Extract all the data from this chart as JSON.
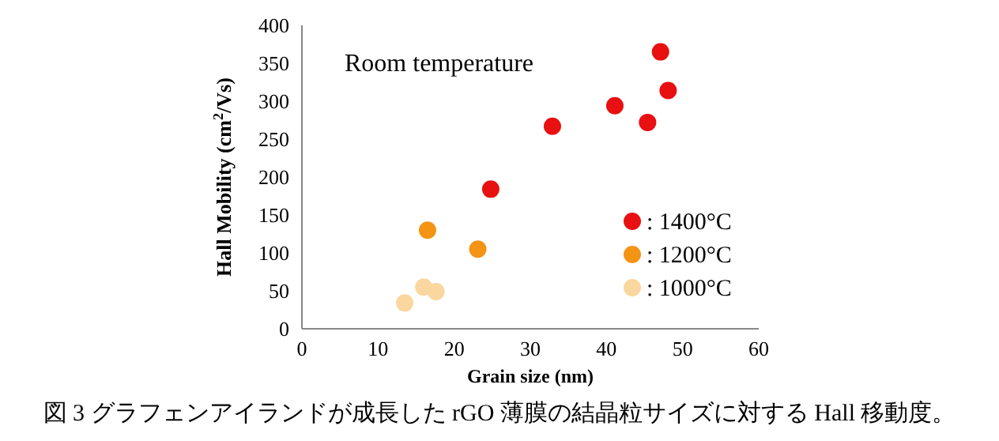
{
  "chart_data": {
    "type": "scatter",
    "xlabel": "Grain size (nm)",
    "ylabel": "Hall Mobility (cm$^{2}$/Vs)",
    "xlim": [
      0,
      60
    ],
    "xticks": [
      0,
      10,
      20,
      30,
      40,
      50,
      60
    ],
    "ylim": [
      0,
      400
    ],
    "yticks": [
      0,
      50,
      100,
      150,
      200,
      250,
      300,
      350,
      400
    ],
    "grid": false,
    "legend": "bottom right",
    "marker": "circle",
    "annotations": [
      "Room temperature",
      "図 3 グラフェンアイランドが成長した rGO 薄膜の結晶粒サイズに対する Hall 移動度。"
    ],
    "series": [
      {
        "name": ": 1400°C",
        "color": "#e81010",
        "x": [
          24.8,
          32.9,
          41.1,
          45.4,
          47.1,
          48.1
        ],
        "values": [
          184,
          267,
          294,
          272,
          365,
          314
        ]
      },
      {
        "name": ": 1200°C",
        "color": "#f39415",
        "x": [
          16.5,
          23.1
        ],
        "values": [
          130,
          105
        ]
      },
      {
        "name": ": 1000°C",
        "color": "#fad79e",
        "x": [
          13.5,
          16,
          17.6
        ],
        "values": [
          34,
          55,
          49
        ]
      }
    ]
  }
}
